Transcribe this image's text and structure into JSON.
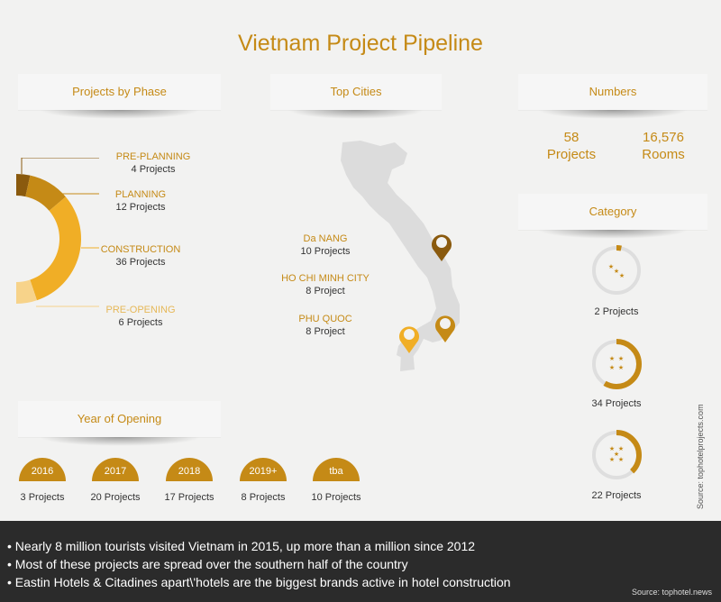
{
  "title": "Vietnam Project Pipeline",
  "sections": {
    "phase": "Projects by Phase",
    "cities": "Top Cities",
    "numbers": "Numbers",
    "category": "Category",
    "year": "Year of Opening"
  },
  "phases": [
    {
      "name": "PRE-PLANNING",
      "count": "4 Projects",
      "value": 4,
      "color": "#8a5a0e"
    },
    {
      "name": "PLANNING",
      "count": "12 Projects",
      "value": 12,
      "color": "#c58a16"
    },
    {
      "name": "CONSTRUCTION",
      "count": "36 Projects",
      "value": 36,
      "color": "#f0ae26"
    },
    {
      "name": "PRE-OPENING",
      "count": "6 Projects",
      "value": 6,
      "color": "#f7d38a"
    }
  ],
  "cities": [
    {
      "name": "Da NANG",
      "count": "10 Projects"
    },
    {
      "name": "HO CHI MINH CITY",
      "count": "8 Project"
    },
    {
      "name": "PHU QUOC",
      "count": "8 Project"
    }
  ],
  "numbers": [
    {
      "value": "58",
      "label": "Projects"
    },
    {
      "value": "16,576",
      "label": "Rooms"
    }
  ],
  "categories": [
    {
      "count": "2 Projects",
      "fraction": 0.034,
      "stars": 3
    },
    {
      "count": "34 Projects",
      "fraction": 0.586,
      "stars": 4
    },
    {
      "count": "22 Projects",
      "fraction": 0.379,
      "stars": 5
    }
  ],
  "years": [
    {
      "year": "2016",
      "count": "3 Projects"
    },
    {
      "year": "2017",
      "count": "20 Projects"
    },
    {
      "year": "2018",
      "count": "17 Projects"
    },
    {
      "year": "2019+",
      "count": "8 Projects"
    },
    {
      "year": "tba",
      "count": "10 Projects"
    }
  ],
  "footer": {
    "bullets": [
      "• Nearly 8 million tourists visited Vietnam in 2015, up more than a million since 2012",
      "• Most of these projects are spread over the southern half of the country",
      "• Eastin Hotels & Citadines apart\\'hotels are the biggest brands active in hotel construction"
    ],
    "source": "Source: tophotel.news"
  },
  "side_source": "Source: tophotelprojects.com",
  "colors": {
    "accent": "#c58a16",
    "dark": "#2b2b2b"
  }
}
